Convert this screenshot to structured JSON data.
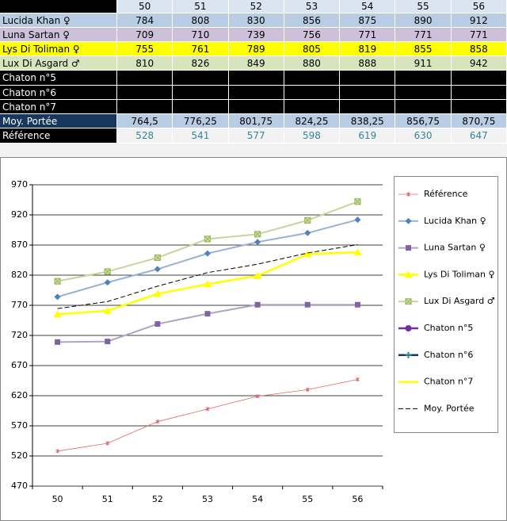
{
  "table": {
    "columns": [
      "50",
      "51",
      "52",
      "53",
      "54",
      "55",
      "56"
    ],
    "rows": [
      {
        "label": "Lucida Khan ♀",
        "cells": [
          "784",
          "808",
          "830",
          "856",
          "875",
          "890",
          "912"
        ]
      },
      {
        "label": "Luna Sartan ♀",
        "cells": [
          "709",
          "710",
          "739",
          "756",
          "771",
          "771",
          "771"
        ]
      },
      {
        "label": "Lys Di Toliman ♀",
        "cells": [
          "755",
          "761",
          "789",
          "805",
          "819",
          "855",
          "858"
        ]
      },
      {
        "label": "Lux Di Asgard ♂",
        "cells": [
          "810",
          "826",
          "849",
          "880",
          "888",
          "911",
          "942"
        ]
      },
      {
        "label": "Chaton n°5"
      },
      {
        "label": "Chaton n°6"
      },
      {
        "label": "Chaton n°7"
      },
      {
        "label": "Moy. Portée",
        "cells": [
          "764,5",
          "776,25",
          "801,75",
          "824,25",
          "838,25",
          "856,75",
          "870,75"
        ]
      },
      {
        "label": "Référence",
        "cells": [
          "528",
          "541",
          "577",
          "598",
          "619",
          "630",
          "647"
        ]
      }
    ]
  },
  "chart_data": {
    "type": "line",
    "categories": [
      "50",
      "51",
      "52",
      "53",
      "54",
      "55",
      "56"
    ],
    "ylim": [
      470,
      970
    ],
    "yticks": [
      470,
      520,
      570,
      620,
      670,
      720,
      770,
      820,
      870,
      920,
      970
    ],
    "grid": true,
    "legend": "right",
    "series": [
      {
        "name": "Référence",
        "color": "#e06666",
        "marker": "star",
        "line_style": "thin",
        "values": [
          528,
          541,
          577,
          598,
          619,
          630,
          647
        ]
      },
      {
        "name": "Lucida Khan ♀",
        "color": "#95b3d7",
        "marker_color": "#4f81bd",
        "marker": "diamond",
        "line_style": "solid",
        "values": [
          784,
          808,
          830,
          856,
          875,
          890,
          912
        ]
      },
      {
        "name": "Luna Sartan ♀",
        "color": "#b3a2c7",
        "marker_color": "#8064a2",
        "marker": "square",
        "line_style": "solid",
        "values": [
          709,
          710,
          739,
          756,
          771,
          771,
          771
        ]
      },
      {
        "name": "Lys Di Toliman ♀",
        "color": "#ffff00",
        "marker_color": "#ffff00",
        "marker": "triangle",
        "line_style": "thick",
        "values": [
          755,
          761,
          789,
          805,
          819,
          855,
          858
        ]
      },
      {
        "name": "Lux Di Asgard ♂",
        "color": "#c3d69b",
        "marker_color": "#9bbb59",
        "marker": "xsquare",
        "line_style": "solid",
        "values": [
          810,
          826,
          849,
          880,
          888,
          911,
          942
        ]
      },
      {
        "name": "Chaton n°5",
        "color": "#7030a0",
        "marker_color": "#7030a0",
        "marker": "circle",
        "line_style": "thick",
        "values": [
          null,
          null,
          null,
          null,
          null,
          null,
          null
        ]
      },
      {
        "name": "Chaton n°6",
        "color": "#17375e",
        "marker_color": "#31859c",
        "marker": "plus",
        "line_style": "thick",
        "values": [
          null,
          null,
          null,
          null,
          null,
          null,
          null
        ]
      },
      {
        "name": "Chaton n°7",
        "color": "#ffff00",
        "marker": "none",
        "line_style": "thick",
        "values": [
          null,
          null,
          null,
          null,
          null,
          null,
          null
        ]
      },
      {
        "name": "Moy. Portée",
        "color": "#000000",
        "marker": "none",
        "line_style": "dashed",
        "values": [
          764.5,
          776.25,
          801.75,
          824.25,
          838.25,
          856.75,
          870.75
        ]
      }
    ]
  }
}
